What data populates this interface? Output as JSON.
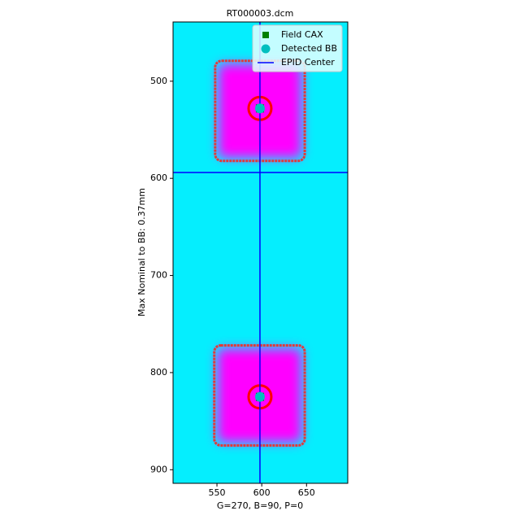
{
  "chart_data": {
    "type": "image",
    "title": "RT000003.dcm",
    "xlabel": "G=270, B=90, P=0",
    "ylabel": "Max Nominal to BB: 0.37mm",
    "xlim": [
      501,
      696
    ],
    "ylim": [
      914,
      439
    ],
    "xticks": [
      550,
      600,
      650
    ],
    "yticks": [
      500,
      600,
      700,
      800,
      900
    ],
    "fields": [
      {
        "x0": 548,
        "x1": 648,
        "y0": 479,
        "y1": 582
      },
      {
        "x0": 547,
        "x1": 648,
        "y0": 772,
        "y1": 875
      }
    ],
    "series": [
      {
        "name": "Field CAX",
        "color": "#008000",
        "x": [
          598,
          598
        ],
        "values": [
          528,
          825
        ]
      },
      {
        "name": "Detected BB",
        "color": "#00bfbf",
        "x": [
          598,
          598
        ],
        "values": [
          528,
          825
        ]
      }
    ],
    "epid_center": {
      "name": "EPID Center",
      "color": "#0000ff",
      "x": 598,
      "y": 594
    },
    "legend": "upper right"
  }
}
